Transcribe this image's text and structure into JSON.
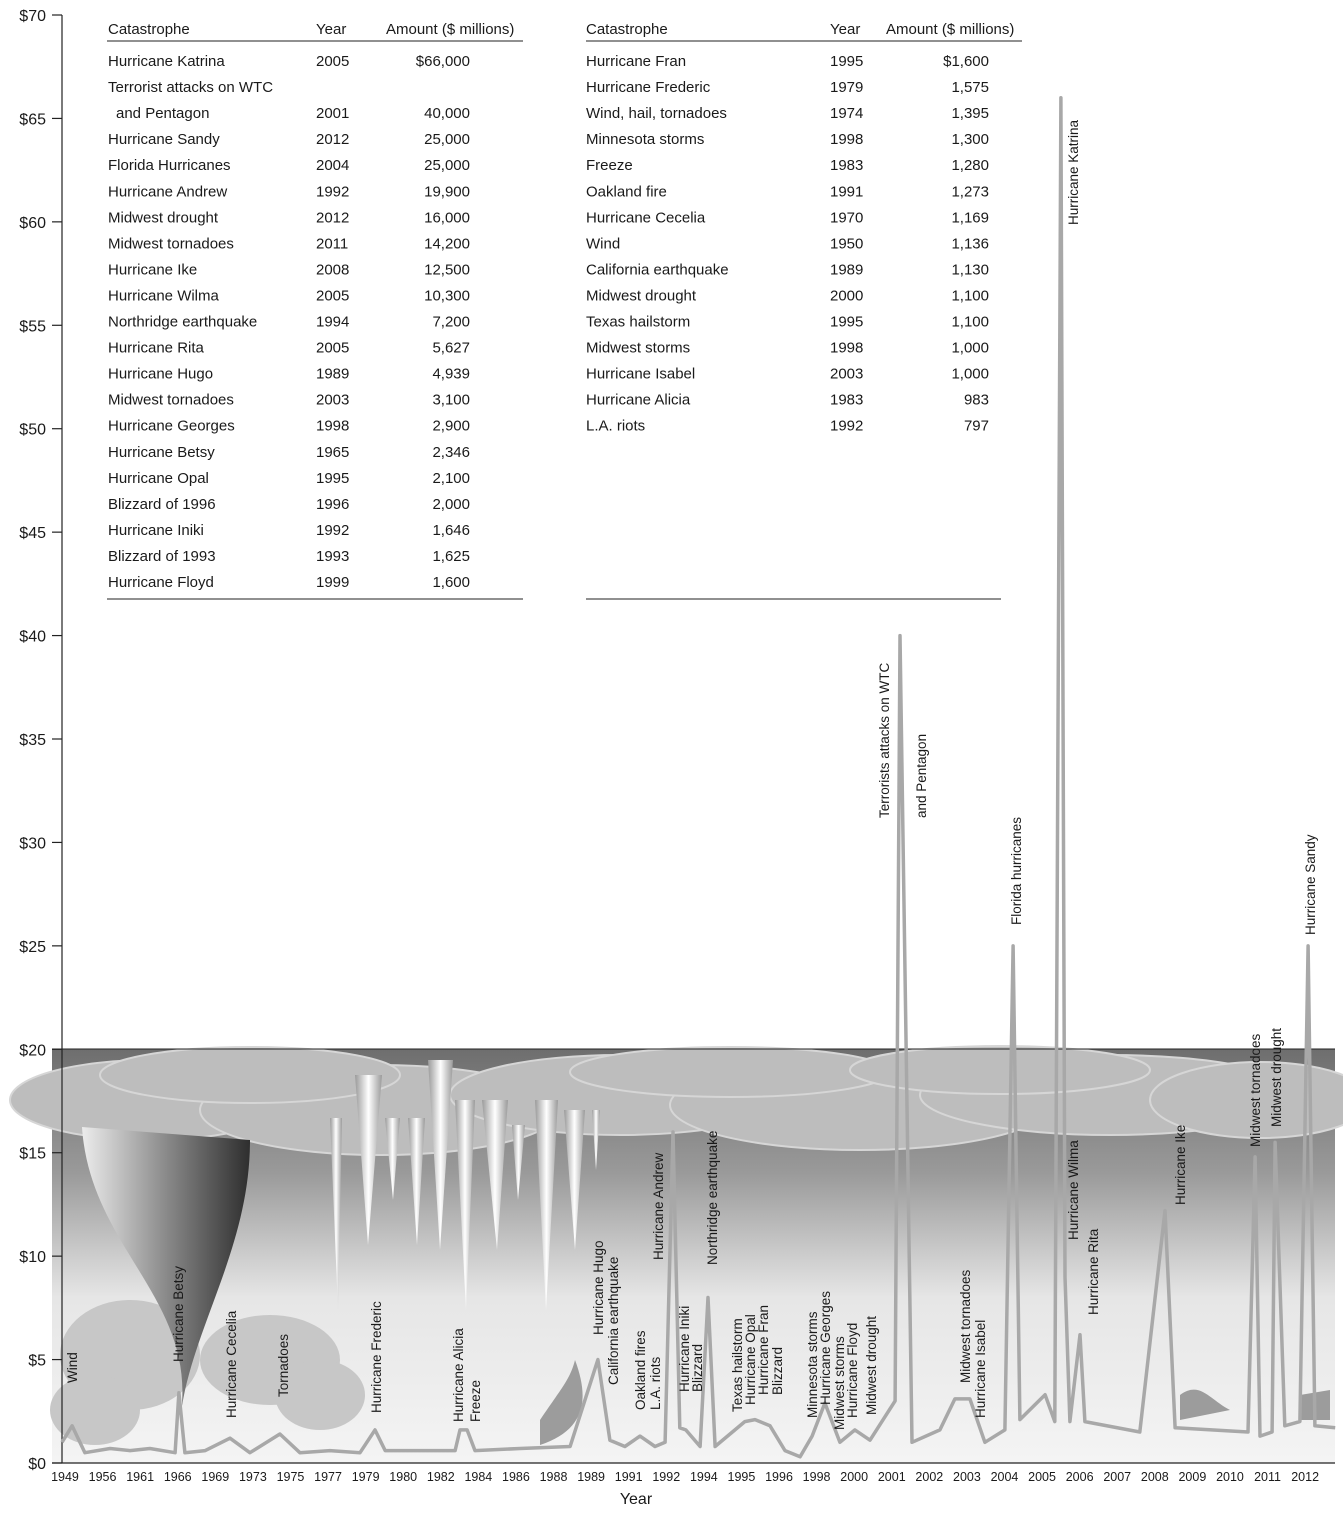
{
  "chart_data": {
    "type": "line",
    "x_label": "Year",
    "categories": [
      "1949",
      "1956",
      "1961",
      "1966",
      "1969",
      "1973",
      "1975",
      "1977",
      "1979",
      "1980",
      "1982",
      "1984",
      "1986",
      "1988",
      "1989",
      "1991",
      "1992",
      "1994",
      "1995",
      "1996",
      "1998",
      "2000",
      "2001",
      "2002",
      "2003",
      "2004",
      "2005",
      "2006",
      "2007",
      "2008",
      "2009",
      "2010",
      "2011",
      "2012"
    ],
    "ylim": [
      0,
      70
    ],
    "yticks": [
      {
        "value": 0,
        "label": "$0"
      },
      {
        "value": 5,
        "label": "$5"
      },
      {
        "value": 10,
        "label": "$10"
      },
      {
        "value": 15,
        "label": "$15"
      },
      {
        "value": 20,
        "label": "$20"
      },
      {
        "value": 25,
        "label": "$25"
      },
      {
        "value": 30,
        "label": "$30"
      },
      {
        "value": 35,
        "label": "$35"
      },
      {
        "value": 40,
        "label": "$40"
      },
      {
        "value": 45,
        "label": "$45"
      },
      {
        "value": 50,
        "label": "$50"
      },
      {
        "value": 55,
        "label": "$55"
      },
      {
        "value": 60,
        "label": "$60"
      },
      {
        "value": 65,
        "label": "$65"
      },
      {
        "value": 70,
        "label": "$70"
      }
    ],
    "series": [
      {
        "color": "#a8a8a8",
        "x": [
          -0.08,
          0.19,
          0.53,
          1.2,
          1.73,
          2.26,
          2.93,
          3.03,
          3.19,
          3.73,
          4.39,
          4.92,
          5.72,
          6.25,
          7.05,
          7.85,
          8.25,
          8.52,
          9.45,
          10.38,
          10.51,
          10.7,
          10.91,
          12.11,
          13.44,
          14.18,
          14.5,
          14.9,
          15.3,
          15.7,
          15.97,
          16.18,
          16.36,
          16.52,
          16.9,
          17.11,
          17.3,
          18.09,
          18.36,
          18.76,
          19.16,
          19.56,
          19.88,
          20.22,
          20.62,
          21.02,
          21.42,
          22.09,
          22.22,
          22.54,
          23.28,
          23.68,
          24.08,
          24.48,
          25.01,
          25.23,
          25.41,
          26.08,
          26.34,
          26.5,
          26.61,
          26.74,
          27.01,
          27.14,
          28.6,
          29.27,
          29.54,
          31.48,
          31.67,
          31.8,
          32.12,
          32.2,
          32.46,
          32.86,
          33.08,
          33.26,
          33.8
        ],
        "values": [
          1.0,
          1.8,
          0.5,
          0.7,
          0.6,
          0.7,
          0.5,
          3.4,
          0.5,
          0.6,
          1.2,
          0.5,
          1.4,
          0.5,
          0.6,
          0.5,
          1.6,
          0.6,
          0.6,
          0.6,
          1.6,
          1.6,
          0.6,
          0.7,
          0.8,
          5.0,
          1.1,
          0.8,
          1.3,
          0.8,
          1.0,
          16.0,
          1.7,
          1.6,
          0.8,
          8.0,
          0.8,
          2.0,
          2.1,
          1.8,
          0.6,
          0.3,
          1.3,
          2.9,
          1.0,
          1.6,
          1.1,
          3.0,
          40.0,
          1.0,
          1.6,
          3.1,
          3.1,
          1.0,
          1.6,
          25.0,
          2.1,
          3.3,
          2.0,
          66.0,
          9.0,
          2.0,
          6.2,
          2.0,
          1.5,
          12.2,
          1.7,
          1.5,
          14.8,
          1.3,
          1.5,
          15.5,
          1.8,
          2.0,
          25.0,
          1.8,
          1.7
        ]
      }
    ],
    "annotations": [
      "Wind",
      "Hurricane Betsy",
      "Hurricane Cecelia",
      "Tornadoes",
      "Hurricane Frederic",
      "Hurricane Alicia",
      "Freeze",
      "Hurricane Hugo",
      "California earthquake",
      "Oakland fires",
      "L.A. riots",
      "Hurricane Andrew",
      "Northridge earthquake",
      "Hurricane Iniki",
      "Blizzard",
      "Texas hailstorm",
      "Hurricane Opal",
      "Hurricane Fran",
      "Blizzard",
      "Minnesota storms",
      "Hurricane Georges",
      "Midwest storms",
      "Hurricane Floyd",
      "Midwest drought",
      "Terrorists attacks on WTC",
      "and Pentagon",
      "Florida hurricanes",
      "Midwest tornadoes",
      "Hurricane Isabel",
      "Hurricane Katrina",
      "Hurricane Wilma",
      "Hurricane Rita",
      "Hurricane Ike",
      "Midwest tornadoes",
      "Midwest drought",
      "Hurricane Sandy"
    ],
    "tables": [
      {
        "header": [
          "Catastrophe",
          "Year",
          "Amount ($ millions)"
        ],
        "rows": [
          [
            [
              "Hurricane Katrina"
            ],
            "2005",
            "$66,000"
          ],
          [
            [
              "Terrorist attacks on WTC",
              "and Pentagon"
            ],
            "2001",
            "40,000"
          ],
          [
            [
              "Hurricane Sandy"
            ],
            "2012",
            "25,000"
          ],
          [
            [
              "Florida Hurricanes"
            ],
            "2004",
            "25,000"
          ],
          [
            [
              "Hurricane Andrew"
            ],
            "1992",
            "19,900"
          ],
          [
            [
              "Midwest drought"
            ],
            "2012",
            "16,000"
          ],
          [
            [
              "Midwest tornadoes"
            ],
            "2011",
            "14,200"
          ],
          [
            [
              "Hurricane Ike"
            ],
            "2008",
            "12,500"
          ],
          [
            [
              "Hurricane Wilma"
            ],
            "2005",
            "10,300"
          ],
          [
            [
              "Northridge earthquake"
            ],
            "1994",
            "7,200"
          ],
          [
            [
              "Hurricane Rita"
            ],
            "2005",
            "5,627"
          ],
          [
            [
              "Hurricane Hugo"
            ],
            "1989",
            "4,939"
          ],
          [
            [
              "Midwest tornadoes"
            ],
            "2003",
            "3,100"
          ],
          [
            [
              "Hurricane Georges"
            ],
            "1998",
            "2,900"
          ],
          [
            [
              "Hurricane Betsy"
            ],
            "1965",
            "2,346"
          ],
          [
            [
              "Hurricane Opal"
            ],
            "1995",
            "2,100"
          ],
          [
            [
              "Blizzard of 1996"
            ],
            "1996",
            "2,000"
          ],
          [
            [
              "Hurricane Iniki"
            ],
            "1992",
            "1,646"
          ],
          [
            [
              "Blizzard of 1993"
            ],
            "1993",
            "1,625"
          ],
          [
            [
              "Hurricane Floyd"
            ],
            "1999",
            "1,600"
          ]
        ]
      },
      {
        "header": [
          "Catastrophe",
          "Year",
          "Amount ($ millions)"
        ],
        "rows": [
          [
            [
              "Hurricane Fran"
            ],
            "1995",
            "$1,600"
          ],
          [
            [
              "Hurricane Frederic"
            ],
            "1979",
            "1,575"
          ],
          [
            [
              "Wind, hail, tornadoes"
            ],
            "1974",
            "1,395"
          ],
          [
            [
              "Minnesota storms"
            ],
            "1998",
            "1,300"
          ],
          [
            [
              "Freeze"
            ],
            "1983",
            "1,280"
          ],
          [
            [
              "Oakland fire"
            ],
            "1991",
            "1,273"
          ],
          [
            [
              "Hurricane Cecelia"
            ],
            "1970",
            "1,169"
          ],
          [
            [
              "Wind"
            ],
            "1950",
            "1,136"
          ],
          [
            [
              "California earthquake"
            ],
            "1989",
            "1,130"
          ],
          [
            [
              "Midwest drought"
            ],
            "2000",
            "1,100"
          ],
          [
            [
              "Texas hailstorm"
            ],
            "1995",
            "1,100"
          ],
          [
            [
              "Midwest storms"
            ],
            "1998",
            "1,000"
          ],
          [
            [
              "Hurricane Isabel"
            ],
            "2003",
            "1,000"
          ],
          [
            [
              "Hurricane Alicia"
            ],
            "1983",
            "983"
          ],
          [
            [
              "L.A. riots"
            ],
            "1992",
            "797"
          ]
        ]
      }
    ]
  }
}
